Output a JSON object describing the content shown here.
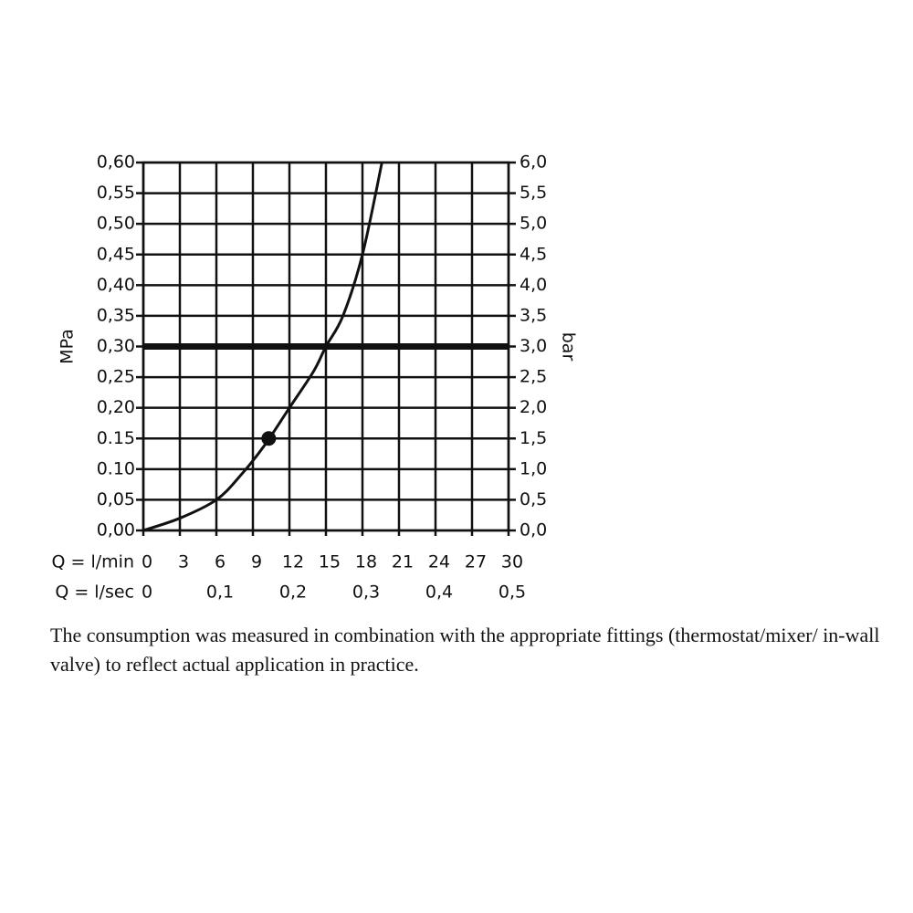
{
  "chart_data": {
    "type": "line",
    "xlim": [
      0,
      30
    ],
    "xticks": [
      0,
      3,
      6,
      9,
      12,
      15,
      18,
      21,
      24,
      27,
      30
    ],
    "x_label": "Q = l/min",
    "x2lim": [
      0,
      0.5
    ],
    "x2ticks": [
      0,
      {
        "value": 0.1,
        "label": "0,1"
      },
      {
        "value": 0.2,
        "label": "0,2"
      },
      {
        "value": 0.3,
        "label": "0,3"
      },
      {
        "value": 0.4,
        "label": "0,4"
      },
      {
        "value": 0.5,
        "label": "0,5"
      }
    ],
    "x2_label": "Q = l/sec",
    "ylim": [
      0,
      0.6
    ],
    "yticks": [
      {
        "value": 0,
        "label": "0,00"
      },
      {
        "value": 0.05,
        "label": "0,05"
      },
      {
        "value": 0.1,
        "label": "0.10"
      },
      {
        "value": 0.15,
        "label": "0.15"
      },
      {
        "value": 0.2,
        "label": "0,20"
      },
      {
        "value": 0.25,
        "label": "0,25"
      },
      {
        "value": 0.3,
        "label": "0,30"
      },
      {
        "value": 0.35,
        "label": "0,35"
      },
      {
        "value": 0.4,
        "label": "0,40"
      },
      {
        "value": 0.45,
        "label": "0,45"
      },
      {
        "value": 0.5,
        "label": "0,50"
      },
      {
        "value": 0.55,
        "label": "0,55"
      },
      {
        "value": 0.6,
        "label": "0,60"
      }
    ],
    "y_label": "MPa",
    "y2lim": [
      0,
      6
    ],
    "y2ticks": [
      {
        "value": 0,
        "label": "0,0"
      },
      {
        "value": 0.5,
        "label": "0,5"
      },
      {
        "value": 1,
        "label": "1,0"
      },
      {
        "value": 1.5,
        "label": "1,5"
      },
      {
        "value": 2,
        "label": "2,0"
      },
      {
        "value": 2.5,
        "label": "2,5"
      },
      {
        "value": 3,
        "label": "3,0"
      },
      {
        "value": 3.5,
        "label": "3,5"
      },
      {
        "value": 4,
        "label": "4,0"
      },
      {
        "value": 4.5,
        "label": "4,5"
      },
      {
        "value": 5,
        "label": "5,0"
      },
      {
        "value": 5.5,
        "label": "5,5"
      },
      {
        "value": 6,
        "label": "6,0"
      }
    ],
    "y2_label": "bar",
    "grid": true,
    "series": [
      {
        "color": "#111111",
        "x": [
          0,
          3,
          6,
          8,
          10,
          12,
          14,
          15,
          16.4,
          18,
          19.6
        ],
        "values": [
          0,
          0.02,
          0.05,
          0.09,
          0.14,
          0.2,
          0.26,
          0.3,
          0.35,
          0.45,
          0.6
        ]
      }
    ],
    "points": {
      "x": [
        10.3
      ],
      "values": [
        0.15
      ]
    },
    "hlines": [
      0.3
    ],
    "vlines": [
      {
        "x": 15,
        "y": 0.3
      }
    ]
  },
  "caption": "The consumption was measured in combination with the appropriate fittings (thermostat/mixer/ in-wall valve) to reflect actual application in practice."
}
